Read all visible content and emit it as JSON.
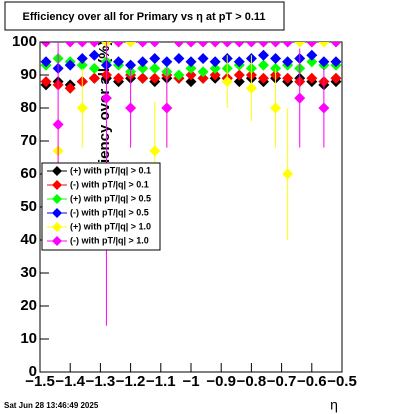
{
  "chart_data": {
    "type": "scatter",
    "title": "Efficiency over all for Primary vs    η at pT > 0.11",
    "ylabel": "Efficiency over all (%)",
    "xlabel": "η",
    "date": "Sat Jun 28 13:46:49 2025",
    "xlim": [
      -1.5,
      -0.5
    ],
    "ylim": [
      0,
      100
    ],
    "xticks": [
      {
        "value": -1.5,
        "label": "−1.5"
      },
      {
        "value": -1.4,
        "label": "−1.4"
      },
      {
        "value": -1.3,
        "label": "−1.3"
      },
      {
        "value": -1.2,
        "label": "−1.2"
      },
      {
        "value": -1.1,
        "label": "−1.1"
      },
      {
        "value": -1,
        "label": "−1"
      },
      {
        "value": -0.9,
        "label": "−0.9"
      },
      {
        "value": -0.8,
        "label": "−0.8"
      },
      {
        "value": -0.7,
        "label": "−0.7"
      },
      {
        "value": -0.6,
        "label": "−0.6"
      },
      {
        "value": -0.5,
        "label": "−0.5"
      }
    ],
    "yticks": [
      0,
      10,
      20,
      30,
      40,
      50,
      60,
      70,
      80,
      90,
      100
    ],
    "grid": false,
    "x": [
      -1.48,
      -1.44,
      -1.4,
      -1.36,
      -1.32,
      -1.28,
      -1.24,
      -1.2,
      -1.16,
      -1.12,
      -1.08,
      -1.04,
      -1,
      -0.96,
      -0.92,
      -0.88,
      -0.84,
      -0.8,
      -0.76,
      -0.72,
      -0.68,
      -0.64,
      -0.6,
      -0.56,
      -0.52
    ],
    "series": [
      {
        "name": "(+) with pT/|q| > 0.1",
        "color": "#000000",
        "values": [
          87,
          88,
          87,
          88,
          89,
          89,
          88,
          89,
          89,
          88,
          89,
          89,
          88,
          89,
          89,
          89,
          88,
          89,
          88,
          89,
          88,
          89,
          88,
          87,
          88
        ]
      },
      {
        "name": "(-) with pT/|q| > 0.1",
        "color": "#ff0000",
        "values": [
          88,
          87,
          86,
          88,
          89,
          90,
          89,
          90,
          89,
          89,
          90,
          89,
          90,
          89,
          90,
          89,
          90,
          90,
          89,
          90,
          89,
          88,
          89,
          88,
          89
        ]
      },
      {
        "name": "(+) with pT/|q| > 0.5",
        "color": "#00ff00",
        "values": [
          93,
          95,
          94,
          93,
          92,
          94,
          93,
          91,
          92,
          92,
          91,
          90,
          92,
          91,
          92,
          92,
          93,
          92,
          93,
          92,
          93,
          92,
          94,
          93,
          93
        ]
      },
      {
        "name": "(-) with pT/|q| > 0.5",
        "color": "#0000ff",
        "values": [
          94,
          92,
          93,
          95,
          96,
          93,
          94,
          93,
          94,
          95,
          94,
          95,
          94,
          95,
          94,
          95,
          94,
          95,
          96,
          95,
          94,
          95,
          96,
          94,
          94
        ]
      },
      {
        "name": "(+) with pT/|q| > 1.0",
        "color": "#ffff00",
        "values": [
          100,
          67,
          100,
          80,
          100,
          100,
          100,
          100,
          100,
          67,
          80,
          100,
          100,
          100,
          100,
          88,
          100,
          86,
          100,
          80,
          60,
          100,
          100,
          100,
          100
        ],
        "errors": [
          0,
          15,
          0,
          12,
          0,
          0,
          0,
          0,
          0,
          15,
          12,
          0,
          0,
          0,
          0,
          8,
          0,
          10,
          0,
          12,
          20,
          0,
          0,
          0,
          0
        ]
      },
      {
        "name": "(-) with pT/|q| > 1.0",
        "color": "#ff00ff",
        "values": [
          100,
          75,
          100,
          100,
          100,
          83,
          100,
          80,
          100,
          100,
          80,
          100,
          100,
          100,
          100,
          100,
          100,
          100,
          100,
          100,
          100,
          83,
          100,
          80,
          100
        ],
        "errors": [
          0,
          30,
          0,
          0,
          0,
          69,
          0,
          12,
          0,
          0,
          12,
          0,
          0,
          0,
          0,
          0,
          0,
          0,
          0,
          0,
          0,
          15,
          0,
          12,
          0
        ]
      }
    ]
  }
}
